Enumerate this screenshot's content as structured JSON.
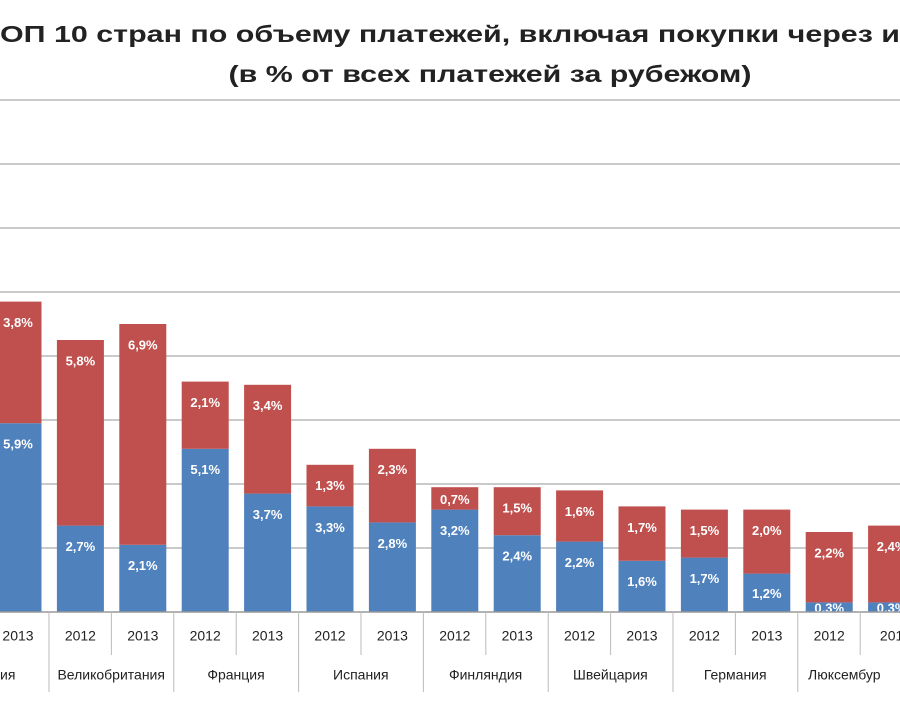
{
  "chart_data": {
    "type": "stacked_bar",
    "title": "ОП 10 стран по объему платежей, включая покупки через и",
    "subtitle": "(в % от всех платежей за рубежом)",
    "categories": [
      "2013",
      "2012",
      "2013",
      "2012",
      "2013",
      "2012",
      "2013",
      "2012",
      "2013",
      "2012",
      "2013",
      "2012",
      "2013",
      "2012",
      "201"
    ],
    "groups": [
      "ия",
      "Великобритания",
      "Франция",
      "Испания",
      "Финляндия",
      "Швейцария",
      "Германия",
      "Люксембур"
    ],
    "series": [
      {
        "color": "#4f81bd",
        "values": [
          5.9,
          2.7,
          2.1,
          5.1,
          3.7,
          3.3,
          2.8,
          3.2,
          2.4,
          2.2,
          1.6,
          1.7,
          1.2,
          0.3,
          0.3
        ],
        "value_labels": [
          "5,9%",
          "2,7%",
          "2,1%",
          "5,1%",
          "3,7%",
          "3,3%",
          "2,8%",
          "3,2%",
          "2,4%",
          "2,2%",
          "1,6%",
          "1,7%",
          "1,2%",
          "0,3%",
          "0,3%"
        ]
      },
      {
        "color": "#c0504d",
        "values": [
          3.8,
          5.8,
          6.9,
          2.1,
          3.4,
          1.3,
          2.3,
          0.7,
          1.5,
          1.6,
          1.7,
          1.5,
          2.0,
          2.2,
          2.4
        ],
        "value_labels": [
          "3,8%",
          "5,8%",
          "6,9%",
          "2,1%",
          "3,4%",
          "1,3%",
          "2,3%",
          "0,7%",
          "1,5%",
          "1,6%",
          "1,7%",
          "1,5%",
          "2,0%",
          "2,2%",
          "2,4%"
        ]
      }
    ],
    "ylim": [
      0,
      16
    ],
    "ygrid": [
      2,
      4,
      6,
      8,
      10,
      12,
      14,
      16
    ],
    "grid": true
  }
}
